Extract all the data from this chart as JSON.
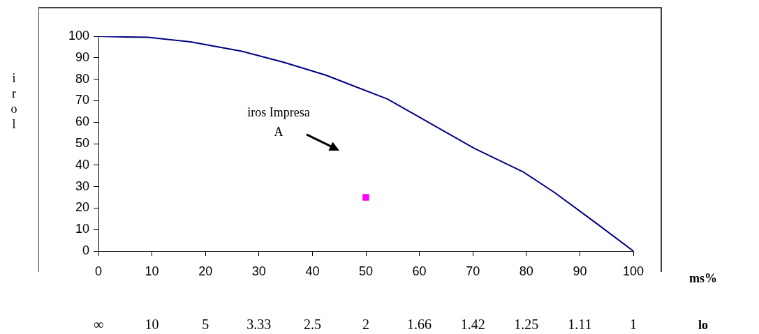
{
  "chart_data": {
    "type": "line",
    "xlabel": "ms%",
    "ylabel": "irol",
    "xlim": [
      0,
      100
    ],
    "xticks": [
      0,
      10,
      20,
      30,
      40,
      50,
      60,
      70,
      80,
      90,
      100
    ],
    "ylim": [
      0,
      100
    ],
    "yticks": [
      0,
      10,
      20,
      30,
      40,
      50,
      60,
      70,
      80,
      90,
      100
    ],
    "series": [
      {
        "color": "#000080",
        "marker": "none",
        "x": [
          0,
          4.8,
          9.3,
          17.2,
          26.8,
          34.6,
          42.5,
          54,
          70.3,
          79.5,
          85.3,
          92.5,
          100
        ],
        "values": [
          100,
          99.7,
          99.5,
          97.4,
          93,
          87.9,
          81.9,
          70.8,
          47.8,
          36.7,
          27.2,
          14,
          0
        ]
      },
      {
        "type": "scatter",
        "color": "#ff00ff",
        "marker": "square",
        "x": [
          50
        ],
        "values": [
          25
        ]
      }
    ],
    "annotations": [
      "iros Impresa A",
      "∞",
      "10",
      "5",
      "3.33",
      "2.5",
      "2",
      "1.66",
      "1.42",
      "1.25",
      "1.11",
      "1",
      "lo"
    ],
    "grid": false,
    "legend": false
  }
}
